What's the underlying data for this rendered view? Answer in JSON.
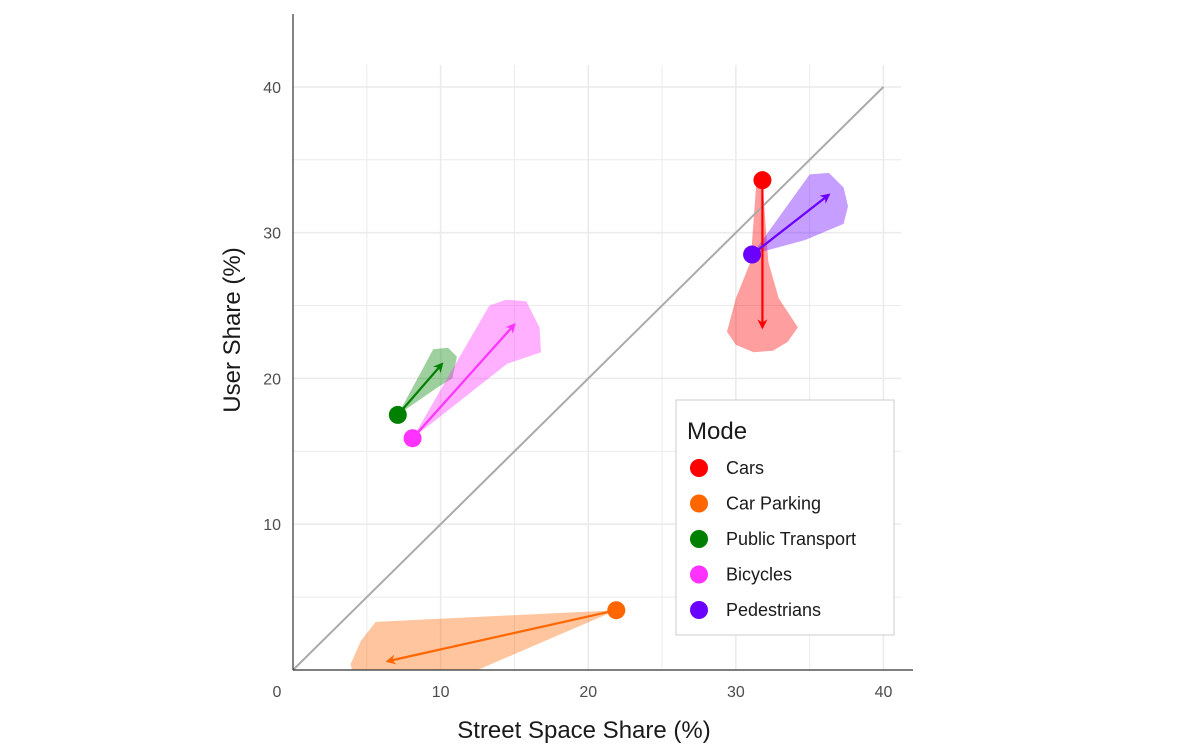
{
  "chart_data": {
    "type": "scatter",
    "title": "",
    "xlabel": "Street Space Share (%)",
    "ylabel": "User Share (%)",
    "xlim": [
      0,
      42
    ],
    "ylim": [
      0,
      45
    ],
    "xticks": [
      0,
      10,
      20,
      30,
      40
    ],
    "yticks": [
      10,
      20,
      30,
      40
    ],
    "grid": true,
    "legend": {
      "title": "Mode",
      "placement": "bottom-right"
    },
    "reference_line": {
      "from": [
        0,
        0
      ],
      "to": [
        40,
        40
      ],
      "color": "#aaaaaa"
    },
    "series": [
      {
        "name": "Cars",
        "color": "#ff0000",
        "start": [
          31.8,
          33.6
        ],
        "end": [
          31.8,
          23.5
        ],
        "band": [
          [
            31.8,
            33.6
          ],
          [
            32.2,
            28
          ],
          [
            32.9,
            25.5
          ],
          [
            34.2,
            23.5
          ],
          [
            33.5,
            22.5
          ],
          [
            32.5,
            21.9
          ],
          [
            31.2,
            21.8
          ],
          [
            30.0,
            22.3
          ],
          [
            29.4,
            23.2
          ],
          [
            30.0,
            25.5
          ],
          [
            31.0,
            28
          ],
          [
            31.4,
            33.6
          ]
        ]
      },
      {
        "name": "Car Parking",
        "color": "#ff6600",
        "start": [
          21.9,
          4.1
        ],
        "end": [
          6.4,
          0.6
        ],
        "band": [
          [
            21.9,
            4.1
          ],
          [
            5.6,
            3.3
          ],
          [
            4.6,
            2.0
          ],
          [
            3.9,
            0.4
          ],
          [
            4.0,
            0
          ],
          [
            12.5,
            0
          ],
          [
            21.9,
            4.1
          ]
        ]
      },
      {
        "name": "Public Transport",
        "color": "#008000",
        "start": [
          7.1,
          17.5
        ],
        "end": [
          10.1,
          21.0
        ],
        "band": [
          [
            7.1,
            17.5
          ],
          [
            8.7,
            20.5
          ],
          [
            9.5,
            22.0
          ],
          [
            10.5,
            22.1
          ],
          [
            11.1,
            21.5
          ],
          [
            10.8,
            20.0
          ],
          [
            9.8,
            19.4
          ],
          [
            7.1,
            17.5
          ]
        ]
      },
      {
        "name": "Bicycles",
        "color": "#ff33ff",
        "start": [
          8.1,
          15.9
        ],
        "end": [
          15.0,
          23.7
        ],
        "band": [
          [
            8.1,
            15.9
          ],
          [
            13.3,
            25.0
          ],
          [
            14.4,
            25.4
          ],
          [
            15.8,
            25.3
          ],
          [
            16.7,
            23.5
          ],
          [
            16.8,
            21.8
          ],
          [
            14.5,
            21.0
          ],
          [
            8.1,
            15.9
          ]
        ]
      },
      {
        "name": "Pedestrians",
        "color": "#6a00ff",
        "start": [
          31.1,
          28.5
        ],
        "end": [
          36.3,
          32.6
        ],
        "band": [
          [
            31.1,
            28.5
          ],
          [
            35.0,
            34.0
          ],
          [
            36.3,
            34.1
          ],
          [
            37.3,
            33.1
          ],
          [
            37.6,
            31.8
          ],
          [
            37.3,
            30.6
          ],
          [
            34.7,
            29.5
          ],
          [
            31.1,
            28.5
          ]
        ]
      }
    ]
  }
}
